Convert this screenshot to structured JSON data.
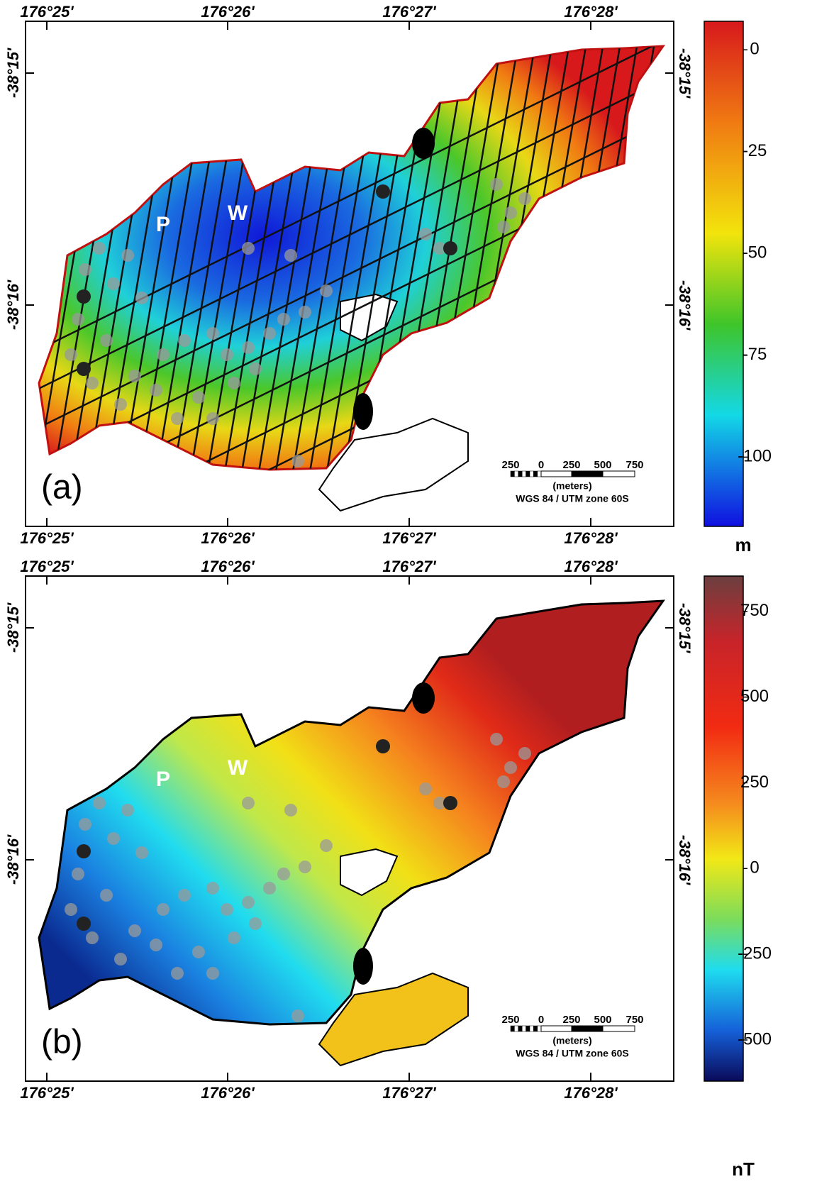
{
  "panels": [
    {
      "label": "(a)",
      "top_labels": [
        "176°25'",
        "176°26'",
        "176°27'",
        "176°28'"
      ],
      "bottom_labels": [
        "176°25'",
        "176°26'",
        "176°27'",
        "176°28'"
      ],
      "left_labels": [
        "-38°15'",
        "-38°16'"
      ],
      "right_labels": [
        "-38°15'",
        "-38°16'"
      ],
      "site_labels": [
        "P",
        "W"
      ],
      "scale_bar": {
        "labels": [
          "250",
          "0",
          "250",
          "500",
          "750"
        ],
        "unit": "(meters)"
      },
      "projection": "WGS 84 / UTM zone 60S",
      "colorbar": {
        "lim": [
          -117,
          7
        ],
        "ticks": [
          0,
          -25,
          -50,
          -75,
          -100
        ],
        "unit": "m"
      }
    },
    {
      "label": "(b)",
      "top_labels": [
        "176°25'",
        "176°26'",
        "176°27'",
        "176°28'"
      ],
      "bottom_labels": [
        "176°25'",
        "176°26'",
        "176°27'",
        "176°28'"
      ],
      "left_labels": [
        "-38°15'",
        "-38°16'"
      ],
      "right_labels": [
        "-38°15'",
        "-38°16'"
      ],
      "site_labels": [
        "P",
        "W"
      ],
      "scale_bar": {
        "labels": [
          "250",
          "0",
          "250",
          "500",
          "750"
        ],
        "unit": "(meters)"
      },
      "projection": "WGS 84 / UTM zone 60S",
      "colorbar": {
        "lim": [
          -620,
          853
        ],
        "ticks": [
          750,
          500,
          250,
          0,
          -250,
          -500
        ],
        "unit": "nT"
      }
    }
  ]
}
